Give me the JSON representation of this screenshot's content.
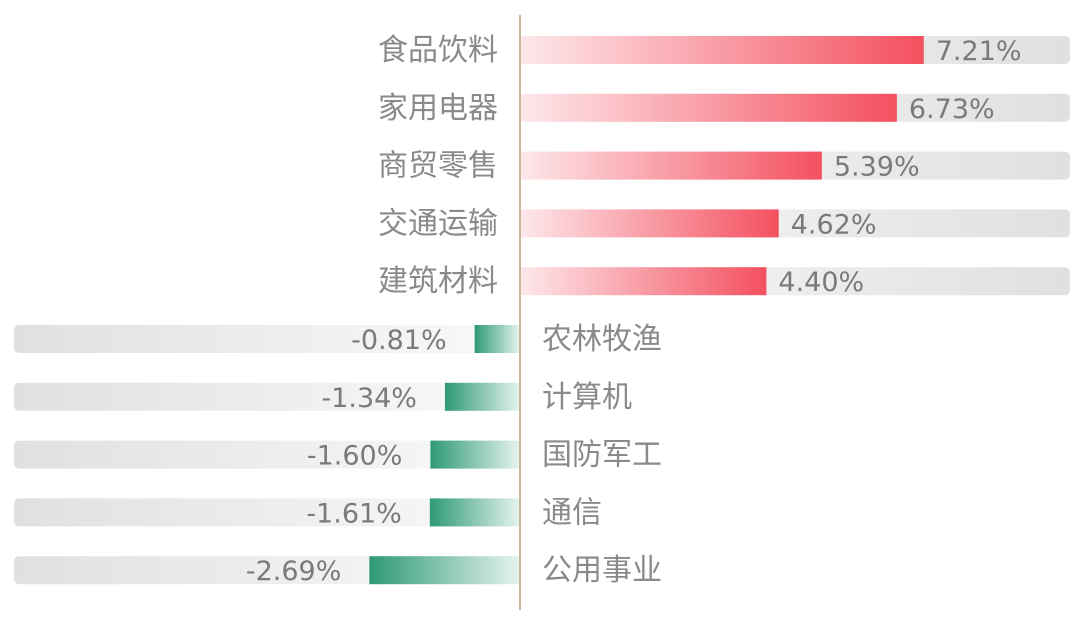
{
  "chart_data": {
    "type": "bar",
    "orientation": "horizontal",
    "categories": [
      "食品饮料",
      "家用电器",
      "商贸零售",
      "交通运输",
      "建筑材料",
      "农林牧渔",
      "计算机",
      "国防军工",
      "通信",
      "公用事业"
    ],
    "values": [
      7.21,
      6.73,
      5.39,
      4.62,
      4.4,
      -0.81,
      -1.34,
      -1.6,
      -1.61,
      -2.69
    ],
    "value_labels": [
      "7.21%",
      "6.73%",
      "5.39%",
      "4.62%",
      "4.40%",
      "-0.81%",
      "-1.34%",
      "-1.60%",
      "-1.61%",
      "-2.69%"
    ],
    "xlim": [
      -8.2,
      9.1
    ],
    "colors": {
      "positive": "#f4505f",
      "positive_fade": "#fde8eb",
      "negative": "#2f9a74",
      "negative_fade": "#e6f4ee",
      "track": "#e0e0e0",
      "track_fade": "#fafafa",
      "axis": "#c9b79c"
    },
    "grid": false,
    "legend": "none"
  }
}
